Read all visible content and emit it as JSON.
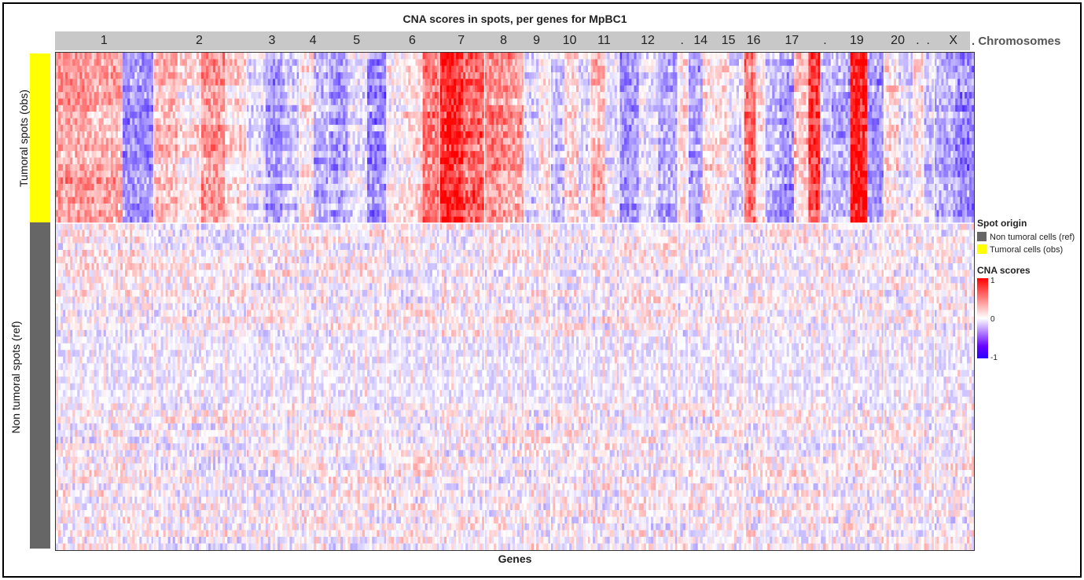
{
  "chart_data": {
    "type": "heatmap",
    "title": "CNA scores in spots, per genes for MpBC1",
    "xlabel": "Genes",
    "chromosome_caption": ". Chromosomes",
    "chromosomes": [
      {
        "label": "1",
        "cnv": [
          0.35,
          0.3,
          -0.45
        ]
      },
      {
        "label": "2",
        "cnv": [
          0.25,
          0.1,
          0.4,
          0.15
        ]
      },
      {
        "label": "3",
        "cnv": [
          -0.1,
          -0.35,
          -0.2
        ]
      },
      {
        "label": "4",
        "cnv": [
          0.05,
          -0.3
        ]
      },
      {
        "label": "5",
        "cnv": [
          -0.35,
          -0.1,
          -0.45
        ]
      },
      {
        "label": "6",
        "cnv": [
          0.05,
          0.15,
          0.55
        ]
      },
      {
        "label": "7",
        "cnv": [
          0.85,
          0.6
        ]
      },
      {
        "label": "8",
        "cnv": [
          0.45,
          0.4
        ]
      },
      {
        "label": "9",
        "cnv": [
          -0.15,
          0.05
        ]
      },
      {
        "label": "10",
        "cnv": [
          -0.2,
          0.15,
          -0.1
        ]
      },
      {
        "label": "11",
        "cnv": [
          0.25,
          -0.1
        ]
      },
      {
        "label": "12",
        "cnv": [
          -0.4,
          -0.1,
          -0.35
        ]
      },
      {
        "label": ".",
        "cnv": [
          0.1
        ]
      },
      {
        "label": "14",
        "cnv": [
          -0.35,
          0.1
        ]
      },
      {
        "label": "15",
        "cnv": [
          0.15,
          -0.1
        ]
      },
      {
        "label": "16",
        "cnv": [
          0.55,
          0.1
        ]
      },
      {
        "label": "17",
        "cnv": [
          -0.25,
          -0.4,
          0.2,
          0.75
        ]
      },
      {
        "label": ".",
        "cnv": [
          -0.25
        ]
      },
      {
        "label": "19",
        "cnv": [
          -0.3,
          0.95,
          -0.4
        ]
      },
      {
        "label": "20",
        "cnv": [
          0.15,
          -0.1
        ]
      },
      {
        "label": ".",
        "cnv": [
          0.1
        ]
      },
      {
        "label": ".",
        "cnv": [
          -0.2
        ]
      },
      {
        "label": "X",
        "cnv": [
          -0.3,
          -0.45
        ]
      }
    ],
    "row_groups": [
      {
        "label": "Tumoral spots (obs)",
        "color": "#ffff00",
        "rows": 26
      },
      {
        "label": "Non tumoral spots (ref)",
        "color": "#666666",
        "rows": 49
      }
    ],
    "color_scale": {
      "title": "CNA scores",
      "min": -1,
      "mid": 0,
      "max": 1,
      "ticks": [
        "1",
        "0",
        "-1"
      ],
      "colors": [
        "#2a00ff",
        "#ffffff",
        "#ff0000"
      ]
    }
  },
  "legend": {
    "origin_title": "Spot origin",
    "items": [
      {
        "label": "Non tumoral cells (ref)",
        "color": "#666666"
      },
      {
        "label": "Tumoral cells (obs)",
        "color": "#ffff00"
      }
    ]
  }
}
